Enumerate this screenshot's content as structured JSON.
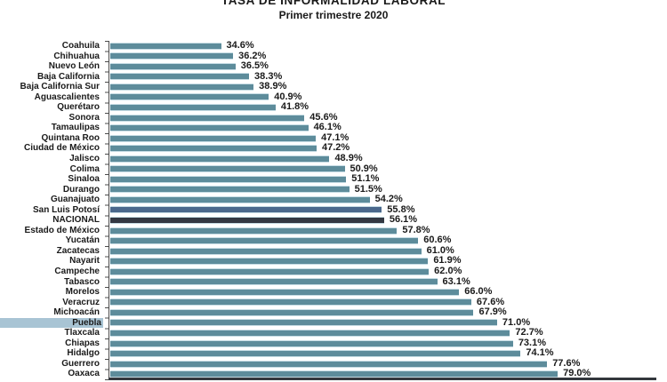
{
  "chart_data": {
    "type": "bar",
    "orientation": "horizontal",
    "title": "TASA DE INFORMALIDAD LABORAL",
    "subtitle": "Primer trimestre 2020",
    "xlim": [
      20,
      92
    ],
    "grid": false,
    "legend": "none",
    "value_suffix": "%",
    "series": [
      {
        "name": "Coahuila",
        "value": 34.6
      },
      {
        "name": "Chihuahua",
        "value": 36.2
      },
      {
        "name": "Nuevo León",
        "value": 36.5
      },
      {
        "name": "Baja California",
        "value": 38.3
      },
      {
        "name": "Baja California Sur",
        "value": 38.9
      },
      {
        "name": "Aguascalientes",
        "value": 40.9
      },
      {
        "name": "Querétaro",
        "value": 41.8
      },
      {
        "name": "Sonora",
        "value": 45.6
      },
      {
        "name": "Tamaulipas",
        "value": 46.1
      },
      {
        "name": "Quintana Roo",
        "value": 47.1
      },
      {
        "name": "Ciudad de México",
        "value": 47.2
      },
      {
        "name": "Jalisco",
        "value": 48.9
      },
      {
        "name": "Colima",
        "value": 50.9
      },
      {
        "name": "Sinaloa",
        "value": 51.1
      },
      {
        "name": "Durango",
        "value": 51.5
      },
      {
        "name": "Guanajuato",
        "value": 54.2
      },
      {
        "name": "San Luis Potosí",
        "value": 55.8,
        "color_key": "bar_secondary"
      },
      {
        "name": "NACIONAL",
        "value": 56.1,
        "color_key": "bar_national"
      },
      {
        "name": "Estado de México",
        "value": 57.8
      },
      {
        "name": "Yucatán",
        "value": 60.6
      },
      {
        "name": "Zacatecas",
        "value": 61.0
      },
      {
        "name": "Nayarit",
        "value": 61.9
      },
      {
        "name": "Campeche",
        "value": 62.0
      },
      {
        "name": "Tabasco",
        "value": 63.1
      },
      {
        "name": "Morelos",
        "value": 66.0
      },
      {
        "name": "Veracruz",
        "value": 67.6
      },
      {
        "name": "Michoacán",
        "value": 67.9
      },
      {
        "name": "Puebla",
        "value": 71.0,
        "label_highlighted": true
      },
      {
        "name": "Tlaxcala",
        "value": 72.7
      },
      {
        "name": "Chiapas",
        "value": 73.1
      },
      {
        "name": "Hidalgo",
        "value": 74.1
      },
      {
        "name": "Guerrero",
        "value": 77.6
      },
      {
        "name": "Oaxaca",
        "value": 79.0
      }
    ],
    "colors": {
      "bar": "#5d8c9b",
      "bar_edge": "#c6dce4",
      "bar_secondary": "#4a688c",
      "bar_national": "#333842",
      "label_highlight": "#a8c4d4",
      "axis": "#4b4b4b",
      "baseline": "#33373d",
      "text": "#1a1a1a"
    }
  }
}
